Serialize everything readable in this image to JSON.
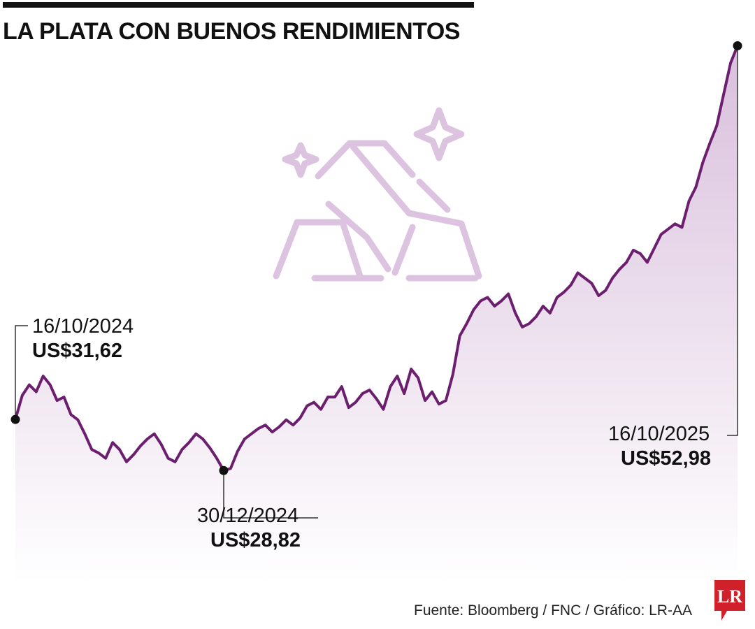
{
  "title": "LA PLATA CON BUENOS RENDIMIENTOS",
  "source": "Fuente: Bloomberg / FNC / Gráfico: LR-AA",
  "logo_text": "LR",
  "colors": {
    "line": "#6b1f6e",
    "area_top": "#d9bfdc",
    "area_bottom": "#ffffff",
    "icon": "#dcc3e0",
    "logo": "#d0202a",
    "text": "#111111"
  },
  "icon": "silver-bars-icon",
  "annotations": [
    {
      "date": "16/10/2024",
      "value": "US$31,62"
    },
    {
      "date": "30/12/2024",
      "value": "US$28,82"
    },
    {
      "date": "16/10/2025",
      "value": "US$52,98"
    }
  ],
  "chart_data": {
    "type": "area",
    "xlabel": "",
    "ylabel": "",
    "x_start": "2024-10-16",
    "x_end": "2025-10-16",
    "ylim": [
      21.0,
      54.0
    ],
    "grid": false,
    "series": [
      {
        "values": [
          31.62,
          33.0,
          33.6,
          33.2,
          34.1,
          33.6,
          32.7,
          32.9,
          31.9,
          31.6,
          30.8,
          29.9,
          29.7,
          29.4,
          30.3,
          29.9,
          29.2,
          29.6,
          30.1,
          30.5,
          30.8,
          30.2,
          29.4,
          29.2,
          29.9,
          30.3,
          30.8,
          30.5,
          30.0,
          29.4,
          28.7,
          28.82,
          29.8,
          30.5,
          30.8,
          31.1,
          31.3,
          30.9,
          31.2,
          31.6,
          31.3,
          31.7,
          32.4,
          32.6,
          32.2,
          32.9,
          32.9,
          33.5,
          32.3,
          32.6,
          33.1,
          33.3,
          32.8,
          32.2,
          33.5,
          34.1,
          33.1,
          34.5,
          34.0,
          32.7,
          33.2,
          32.5,
          32.7,
          34.2,
          36.4,
          37.1,
          37.9,
          38.4,
          38.6,
          38.1,
          38.4,
          38.8,
          37.7,
          36.9,
          37.1,
          37.5,
          38.1,
          37.7,
          38.6,
          38.9,
          39.3,
          40.0,
          39.7,
          39.4,
          38.7,
          39.0,
          39.7,
          40.2,
          40.6,
          41.3,
          41.1,
          40.6,
          41.4,
          42.2,
          42.5,
          42.8,
          42.6,
          44.1,
          44.9,
          46.3,
          47.4,
          48.4,
          50.2,
          52.0,
          52.98
        ]
      }
    ]
  }
}
